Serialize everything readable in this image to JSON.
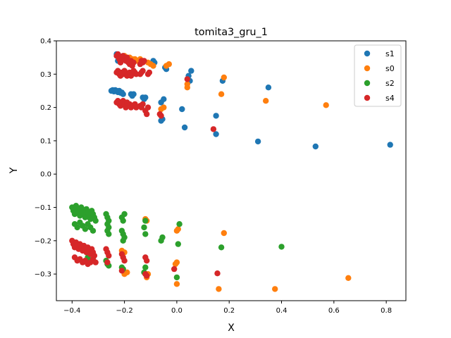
{
  "chart_data": {
    "type": "scatter",
    "title": "tomita3_gru_1",
    "xlabel": "X",
    "ylabel": "Y",
    "xlim": [
      -0.46,
      0.875
    ],
    "ylim": [
      -0.38,
      0.4
    ],
    "x_ticks": [
      -0.4,
      -0.2,
      0.0,
      0.2,
      0.4,
      0.6,
      0.8
    ],
    "x_tick_labels": [
      "−0.4",
      "−0.2",
      "0.0",
      "0.2",
      "0.4",
      "0.6",
      "0.8"
    ],
    "y_ticks": [
      -0.3,
      -0.2,
      -0.1,
      0.0,
      0.1,
      0.2,
      0.3,
      0.4
    ],
    "y_tick_labels": [
      "−0.3",
      "−0.2",
      "−0.1",
      "0.0",
      "0.1",
      "0.2",
      "0.3",
      "0.4"
    ],
    "grid": false,
    "legend_position": "top-right",
    "series": [
      {
        "name": "s1",
        "color": "#1f77b4",
        "points": [
          [
            -0.25,
            0.25
          ],
          [
            -0.245,
            0.252
          ],
          [
            -0.24,
            0.248
          ],
          [
            -0.235,
            0.252
          ],
          [
            -0.23,
            0.25
          ],
          [
            -0.225,
            0.246
          ],
          [
            -0.22,
            0.25
          ],
          [
            -0.215,
            0.244
          ],
          [
            -0.21,
            0.245
          ],
          [
            -0.205,
            0.24
          ],
          [
            -0.23,
            0.36
          ],
          [
            -0.225,
            0.34
          ],
          [
            -0.22,
            0.355
          ],
          [
            -0.215,
            0.35
          ],
          [
            -0.175,
            0.24
          ],
          [
            -0.17,
            0.235
          ],
          [
            -0.165,
            0.24
          ],
          [
            -0.13,
            0.23
          ],
          [
            -0.125,
            0.225
          ],
          [
            -0.12,
            0.23
          ],
          [
            -0.09,
            0.34
          ],
          [
            -0.085,
            0.335
          ],
          [
            -0.06,
            0.215
          ],
          [
            -0.05,
            0.225
          ],
          [
            -0.045,
            0.32
          ],
          [
            -0.04,
            0.315
          ],
          [
            -0.06,
            0.16
          ],
          [
            -0.055,
            0.165
          ],
          [
            0.02,
            0.195
          ],
          [
            0.03,
            0.14
          ],
          [
            0.045,
            0.295
          ],
          [
            0.05,
            0.28
          ],
          [
            0.055,
            0.31
          ],
          [
            0.15,
            0.175
          ],
          [
            0.15,
            0.12
          ],
          [
            0.175,
            0.28
          ],
          [
            0.31,
            0.098
          ],
          [
            0.35,
            0.26
          ],
          [
            0.53,
            0.083
          ],
          [
            0.815,
            0.088
          ]
        ]
      },
      {
        "name": "s0",
        "color": "#ff7f0e",
        "points": [
          [
            -0.2,
            0.355
          ],
          [
            -0.19,
            0.35
          ],
          [
            -0.18,
            0.35
          ],
          [
            -0.17,
            0.345
          ],
          [
            -0.16,
            0.345
          ],
          [
            -0.15,
            0.34
          ],
          [
            -0.14,
            0.345
          ],
          [
            -0.13,
            0.34
          ],
          [
            -0.11,
            0.335
          ],
          [
            -0.1,
            0.33
          ],
          [
            -0.09,
            0.325
          ],
          [
            -0.04,
            0.325
          ],
          [
            -0.03,
            0.33
          ],
          [
            -0.06,
            0.195
          ],
          [
            -0.05,
            0.2
          ],
          [
            0.04,
            0.27
          ],
          [
            0.04,
            0.26
          ],
          [
            0.17,
            0.24
          ],
          [
            0.18,
            0.29
          ],
          [
            0.34,
            0.22
          ],
          [
            0.57,
            0.207
          ],
          [
            -0.21,
            -0.23
          ],
          [
            -0.2,
            -0.235
          ],
          [
            -0.12,
            -0.135
          ],
          [
            -0.115,
            -0.14
          ],
          [
            0.0,
            -0.17
          ],
          [
            0.005,
            -0.165
          ],
          [
            0.18,
            -0.177
          ],
          [
            -0.2,
            -0.3
          ],
          [
            -0.19,
            -0.295
          ],
          [
            -0.115,
            -0.31
          ],
          [
            -0.11,
            -0.3
          ],
          [
            -0.005,
            -0.27
          ],
          [
            0.0,
            -0.265
          ],
          [
            0.0,
            -0.33
          ],
          [
            0.16,
            -0.345
          ],
          [
            0.375,
            -0.345
          ],
          [
            0.655,
            -0.312
          ]
        ]
      },
      {
        "name": "s2",
        "color": "#2ca02c",
        "points": [
          [
            -0.4,
            -0.1
          ],
          [
            -0.395,
            -0.11
          ],
          [
            -0.39,
            -0.12
          ],
          [
            -0.385,
            -0.095
          ],
          [
            -0.38,
            -0.105
          ],
          [
            -0.375,
            -0.115
          ],
          [
            -0.37,
            -0.125
          ],
          [
            -0.365,
            -0.1
          ],
          [
            -0.36,
            -0.11
          ],
          [
            -0.355,
            -0.12
          ],
          [
            -0.35,
            -0.13
          ],
          [
            -0.345,
            -0.105
          ],
          [
            -0.34,
            -0.115
          ],
          [
            -0.335,
            -0.125
          ],
          [
            -0.33,
            -0.135
          ],
          [
            -0.325,
            -0.11
          ],
          [
            -0.32,
            -0.12
          ],
          [
            -0.315,
            -0.13
          ],
          [
            -0.31,
            -0.14
          ],
          [
            -0.39,
            -0.15
          ],
          [
            -0.38,
            -0.16
          ],
          [
            -0.37,
            -0.145
          ],
          [
            -0.36,
            -0.155
          ],
          [
            -0.35,
            -0.165
          ],
          [
            -0.34,
            -0.15
          ],
          [
            -0.33,
            -0.16
          ],
          [
            -0.32,
            -0.17
          ],
          [
            -0.27,
            -0.12
          ],
          [
            -0.265,
            -0.13
          ],
          [
            -0.26,
            -0.14
          ],
          [
            -0.265,
            -0.15
          ],
          [
            -0.26,
            -0.16
          ],
          [
            -0.265,
            -0.17
          ],
          [
            -0.26,
            -0.18
          ],
          [
            -0.21,
            -0.13
          ],
          [
            -0.205,
            -0.14
          ],
          [
            -0.2,
            -0.12
          ],
          [
            -0.21,
            -0.17
          ],
          [
            -0.205,
            -0.18
          ],
          [
            -0.2,
            -0.19
          ],
          [
            -0.205,
            -0.2
          ],
          [
            -0.12,
            -0.14
          ],
          [
            -0.125,
            -0.16
          ],
          [
            -0.12,
            -0.18
          ],
          [
            -0.06,
            -0.2
          ],
          [
            -0.055,
            -0.19
          ],
          [
            0.01,
            -0.15
          ],
          [
            0.005,
            -0.21
          ],
          [
            0.17,
            -0.22
          ],
          [
            0.4,
            -0.218
          ],
          [
            -0.33,
            -0.26
          ],
          [
            -0.34,
            -0.25
          ],
          [
            -0.27,
            -0.26
          ],
          [
            -0.265,
            -0.27
          ],
          [
            -0.26,
            -0.275
          ],
          [
            -0.21,
            -0.28
          ],
          [
            -0.205,
            -0.285
          ],
          [
            -0.12,
            -0.28
          ],
          [
            -0.125,
            -0.295
          ],
          [
            0.0,
            -0.31
          ]
        ]
      },
      {
        "name": "s4",
        "color": "#d62728",
        "points": [
          [
            -0.23,
            0.355
          ],
          [
            -0.225,
            0.36
          ],
          [
            -0.22,
            0.345
          ],
          [
            -0.215,
            0.335
          ],
          [
            -0.21,
            0.35
          ],
          [
            -0.205,
            0.355
          ],
          [
            -0.2,
            0.345
          ],
          [
            -0.195,
            0.34
          ],
          [
            -0.19,
            0.35
          ],
          [
            -0.185,
            0.335
          ],
          [
            -0.18,
            0.33
          ],
          [
            -0.175,
            0.34
          ],
          [
            -0.17,
            0.325
          ],
          [
            -0.165,
            0.335
          ],
          [
            -0.23,
            0.305
          ],
          [
            -0.225,
            0.31
          ],
          [
            -0.22,
            0.3
          ],
          [
            -0.215,
            0.295
          ],
          [
            -0.21,
            0.305
          ],
          [
            -0.205,
            0.3
          ],
          [
            -0.2,
            0.31
          ],
          [
            -0.195,
            0.305
          ],
          [
            -0.19,
            0.295
          ],
          [
            -0.185,
            0.3
          ],
          [
            -0.18,
            0.305
          ],
          [
            -0.175,
            0.295
          ],
          [
            -0.17,
            0.3
          ],
          [
            -0.165,
            0.31
          ],
          [
            -0.16,
            0.305
          ],
          [
            -0.155,
            0.3
          ],
          [
            -0.23,
            0.215
          ],
          [
            -0.225,
            0.22
          ],
          [
            -0.22,
            0.21
          ],
          [
            -0.215,
            0.205
          ],
          [
            -0.21,
            0.215
          ],
          [
            -0.205,
            0.22
          ],
          [
            -0.2,
            0.21
          ],
          [
            -0.195,
            0.2
          ],
          [
            -0.19,
            0.215
          ],
          [
            -0.185,
            0.205
          ],
          [
            -0.18,
            0.21
          ],
          [
            -0.175,
            0.2
          ],
          [
            -0.17,
            0.205
          ],
          [
            -0.16,
            0.21
          ],
          [
            -0.155,
            0.2
          ],
          [
            -0.14,
            0.33
          ],
          [
            -0.135,
            0.34
          ],
          [
            -0.13,
            0.335
          ],
          [
            -0.125,
            0.34
          ],
          [
            -0.14,
            0.3
          ],
          [
            -0.135,
            0.305
          ],
          [
            -0.13,
            0.31
          ],
          [
            -0.14,
            0.205
          ],
          [
            -0.135,
            0.2
          ],
          [
            -0.13,
            0.21
          ],
          [
            -0.12,
            0.19
          ],
          [
            -0.115,
            0.18
          ],
          [
            -0.11,
            0.2
          ],
          [
            -0.11,
            0.3
          ],
          [
            -0.105,
            0.305
          ],
          [
            -0.065,
            0.18
          ],
          [
            -0.06,
            0.175
          ],
          [
            0.04,
            0.285
          ],
          [
            0.14,
            0.135
          ],
          [
            -0.4,
            -0.2
          ],
          [
            -0.395,
            -0.21
          ],
          [
            -0.39,
            -0.22
          ],
          [
            -0.385,
            -0.205
          ],
          [
            -0.38,
            -0.215
          ],
          [
            -0.375,
            -0.225
          ],
          [
            -0.37,
            -0.21
          ],
          [
            -0.365,
            -0.22
          ],
          [
            -0.36,
            -0.23
          ],
          [
            -0.355,
            -0.215
          ],
          [
            -0.35,
            -0.225
          ],
          [
            -0.345,
            -0.235
          ],
          [
            -0.34,
            -0.22
          ],
          [
            -0.335,
            -0.23
          ],
          [
            -0.33,
            -0.24
          ],
          [
            -0.325,
            -0.225
          ],
          [
            -0.32,
            -0.235
          ],
          [
            -0.315,
            -0.245
          ],
          [
            -0.39,
            -0.25
          ],
          [
            -0.38,
            -0.26
          ],
          [
            -0.37,
            -0.255
          ],
          [
            -0.36,
            -0.265
          ],
          [
            -0.35,
            -0.26
          ],
          [
            -0.34,
            -0.27
          ],
          [
            -0.33,
            -0.265
          ],
          [
            -0.32,
            -0.255
          ],
          [
            -0.31,
            -0.265
          ],
          [
            -0.27,
            -0.225
          ],
          [
            -0.265,
            -0.235
          ],
          [
            -0.26,
            -0.245
          ],
          [
            -0.265,
            -0.265
          ],
          [
            -0.21,
            -0.24
          ],
          [
            -0.205,
            -0.25
          ],
          [
            -0.2,
            -0.26
          ],
          [
            -0.21,
            -0.29
          ],
          [
            -0.12,
            -0.25
          ],
          [
            -0.115,
            -0.26
          ],
          [
            -0.12,
            -0.3
          ],
          [
            -0.115,
            -0.305
          ],
          [
            -0.01,
            -0.285
          ],
          [
            0.155,
            -0.298
          ]
        ]
      }
    ]
  }
}
